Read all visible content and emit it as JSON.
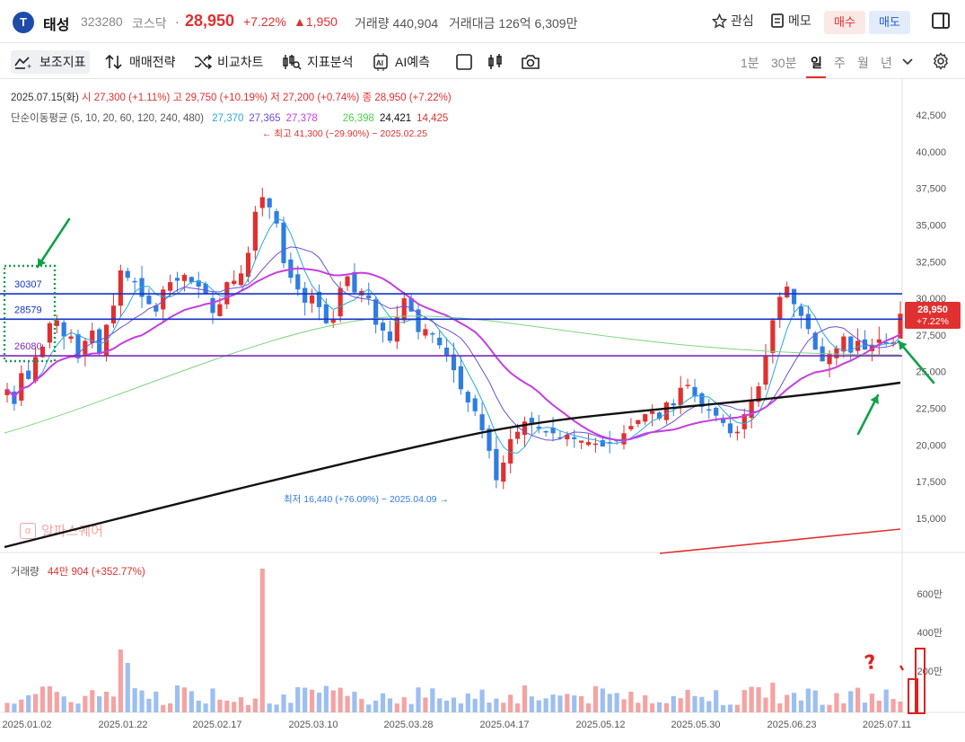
{
  "header": {
    "logo_letter": "T",
    "name": "태성",
    "code": "323280",
    "market": "코스닥",
    "price": "28,950",
    "change_pct": "+7.22%",
    "change_abs": "▲1,950",
    "volume_label": "거래량 440,904",
    "amount_label": "거래대금 126억 6,309만",
    "watch_label": "관심",
    "memo_label": "메모",
    "buy_label": "매수",
    "sell_label": "매도"
  },
  "toolbar": {
    "indicators": "보조지표",
    "strategy": "매매전략",
    "compare": "비교차트",
    "indicator_analysis": "지표분석",
    "ai_forecast": "AI예측",
    "periods": [
      "1분",
      "30분",
      "일",
      "주",
      "월",
      "년"
    ],
    "selected_period": "일"
  },
  "legend": {
    "date": "2025.07.15(화)",
    "open": "시 27,300 (+1.11%)",
    "high": "고 29,750 (+10.19%)",
    "low": "저 27,200 (+0.74%)",
    "close": "종 28,950 (+7.22%)",
    "ma_label": "단순이동평균 (5, 10, 20, 60, 120, 240, 480)",
    "ma_values": [
      "27,370",
      "27,365",
      "27,378",
      "26,398",
      "24,421",
      "14,425"
    ],
    "ma_colors": [
      "#29a7e0",
      "#6b4fd8",
      "#c43ee0",
      "#4ccf4c",
      "#111111",
      "#e03030"
    ]
  },
  "annotations": {
    "high_note": "최고 41,300 (−29.90%) − 2025.02.25",
    "low_note": "최저 16,440 (+76.09%) − 2025.04.09",
    "level_labels": [
      "30307",
      "28579",
      "26080"
    ],
    "last_price_tag": "28,950",
    "last_pct_tag": "+7.22%",
    "handwritten": "?"
  },
  "volume": {
    "label": "거래량",
    "value": "44만 904 (+352.77%)"
  },
  "watermark": "알파스퀘어",
  "colors": {
    "up": "#e03030",
    "down": "#2f7de1",
    "level_blue": "#1533cc",
    "level_purple": "#7a2bb8",
    "annot_green": "#12a04a"
  },
  "chart_data": {
    "type": "candlestick",
    "y_ticks": [
      "42,500",
      "40,000",
      "37,500",
      "35,000",
      "32,500",
      "30,000",
      "27,500",
      "25,000",
      "22,500",
      "20,000",
      "17,500",
      "15,000"
    ],
    "volume_ticks": [
      "600만",
      "400만",
      "200만"
    ],
    "x_ticks": [
      "2025.01.02",
      "2025.01.22",
      "2025.02.17",
      "2025.03.10",
      "2025.03.28",
      "2025.04.17",
      "2025.05.12",
      "2025.05.30",
      "2025.06.23",
      "2025.07.11"
    ],
    "ylim": [
      13800,
      43500
    ],
    "horizontal_levels": [
      30307,
      28579,
      26080
    ],
    "closes": [
      23800,
      22800,
      24900,
      24500,
      26000,
      26700,
      28300,
      28500,
      27400,
      27400,
      25900,
      27100,
      27800,
      26300,
      28200,
      29500,
      31900,
      31400,
      31100,
      30100,
      29600,
      29100,
      30600,
      31100,
      31200,
      31600,
      31100,
      30800,
      30300,
      29000,
      29600,
      31100,
      31200,
      31700,
      33100,
      35900,
      36900,
      36200,
      35100,
      32400,
      31400,
      30600,
      29700,
      30200,
      29400,
      28300,
      28600,
      30700,
      31500,
      30400,
      30500,
      30000,
      28200,
      27800,
      27100,
      28700,
      30000,
      29100,
      27700,
      27900,
      27600,
      26800,
      26100,
      25100,
      23800,
      22900,
      22300,
      21000,
      19600,
      17600,
      18800,
      20400,
      20900,
      21600,
      21500,
      21100,
      20900,
      20800,
      20500,
      20700,
      20400,
      20300,
      20200,
      20100,
      19900,
      20100,
      20300,
      20800,
      21300,
      21700,
      22100,
      22300,
      21800,
      22900,
      22700,
      23900,
      24100,
      23300,
      22600,
      22400,
      22000,
      21500,
      20800,
      20900,
      22100,
      23100,
      24000,
      26100,
      28500,
      30100,
      30800,
      29600,
      28800,
      27900,
      26500,
      25700,
      26200,
      26600,
      27400,
      26300,
      27100,
      26500,
      26800,
      27200,
      27000,
      27000,
      28950
    ]
  }
}
